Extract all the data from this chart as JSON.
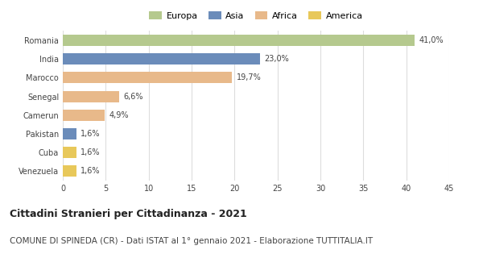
{
  "categories": [
    "Romania",
    "India",
    "Marocco",
    "Senegal",
    "Camerun",
    "Pakistan",
    "Cuba",
    "Venezuela"
  ],
  "values": [
    41.0,
    23.0,
    19.7,
    6.6,
    4.9,
    1.6,
    1.6,
    1.6
  ],
  "labels": [
    "41,0%",
    "23,0%",
    "19,7%",
    "6,6%",
    "4,9%",
    "1,6%",
    "1,6%",
    "1,6%"
  ],
  "colors": [
    "#b5c98e",
    "#6b8cba",
    "#e8b98a",
    "#e8b98a",
    "#e8b98a",
    "#6b8cba",
    "#e8c85a",
    "#e8c85a"
  ],
  "legend_items": [
    {
      "label": "Europa",
      "color": "#b5c98e"
    },
    {
      "label": "Asia",
      "color": "#6b8cba"
    },
    {
      "label": "Africa",
      "color": "#e8b98a"
    },
    {
      "label": "America",
      "color": "#e8c85a"
    }
  ],
  "xlim": [
    0,
    45
  ],
  "xticks": [
    0,
    5,
    10,
    15,
    20,
    25,
    30,
    35,
    40,
    45
  ],
  "title": "Cittadini Stranieri per Cittadinanza - 2021",
  "subtitle": "COMUNE DI SPINEDA (CR) - Dati ISTAT al 1° gennaio 2021 - Elaborazione TUTTITALIA.IT",
  "title_fontsize": 9,
  "subtitle_fontsize": 7.5,
  "bar_height": 0.6,
  "bg_color": "#ffffff",
  "grid_color": "#dddddd",
  "label_fontsize": 7,
  "tick_fontsize": 7,
  "legend_fontsize": 8
}
